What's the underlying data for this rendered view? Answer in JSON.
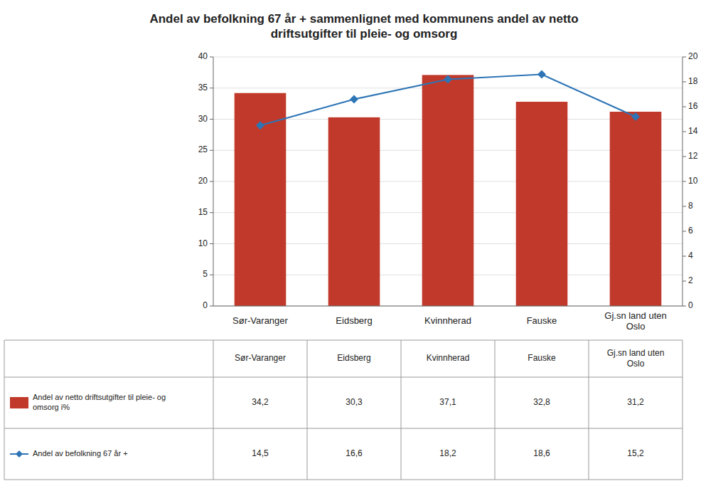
{
  "chart_data": {
    "type": "bar",
    "title": "Andel av befolkning 67 år + sammenlignet med kommunens andel av netto\ndriftsutgifter til pleie- og omsorg",
    "categories": [
      "Sør-Varanger",
      "Eidsberg",
      "Kvinnherad",
      "Fauske",
      "Gj.sn land uten\nOslo"
    ],
    "series": [
      {
        "name": "Andel av netto driftsutgifter til pleie- og\nomsorg i%",
        "type": "bar",
        "color": "#C0392B",
        "values": [
          34.2,
          30.3,
          37.1,
          32.8,
          31.2
        ],
        "value_labels": [
          "34,2",
          "30,3",
          "37,1",
          "32,8",
          "31,2"
        ]
      },
      {
        "name": "Andel av befolkning 67 år +",
        "type": "line",
        "axis": "y2",
        "color": "#2E75B6",
        "marker": "diamond",
        "values": [
          14.5,
          16.6,
          18.2,
          18.6,
          15.2
        ],
        "value_labels": [
          "14,5",
          "16,6",
          "18,2",
          "18,6",
          "15,2"
        ]
      }
    ],
    "ylim": [
      0,
      40
    ],
    "yticks": [
      0,
      5,
      10,
      15,
      20,
      25,
      30,
      35,
      40
    ],
    "y2lim": [
      0,
      20
    ],
    "y2ticks": [
      0,
      2,
      4,
      6,
      8,
      10,
      12,
      14,
      16,
      18,
      20
    ],
    "grid": true
  }
}
